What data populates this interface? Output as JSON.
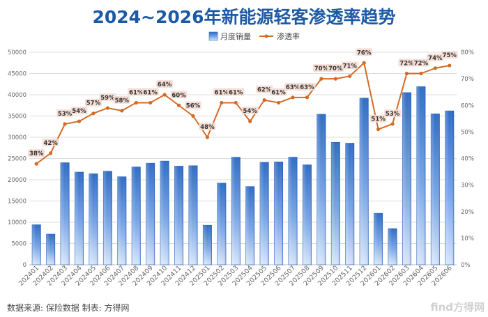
{
  "chart_data": {
    "type": "bar",
    "title": "2024~2026年新能源轻客渗透率趋势",
    "legend": {
      "position": "top",
      "bar_label": "月度销量",
      "line_label": "渗透率"
    },
    "categories": [
      "202401",
      "202402",
      "202403",
      "202404",
      "202405",
      "202406",
      "202407",
      "202408",
      "202409",
      "202410",
      "202411",
      "202412",
      "202501",
      "202502",
      "202503",
      "202504",
      "202505",
      "202506",
      "202507",
      "202508",
      "202509",
      "202510",
      "202511",
      "202512",
      "202601",
      "202602",
      "202603",
      "202604",
      "202605",
      "202606"
    ],
    "series": [
      {
        "name": "月度销量",
        "type": "bar",
        "axis": "left",
        "color": "#5b8fd6",
        "values": [
          9400,
          7200,
          24000,
          21800,
          21400,
          22000,
          20700,
          23000,
          23900,
          24400,
          23200,
          23300,
          9300,
          19200,
          25300,
          18400,
          24100,
          24200,
          25300,
          23500,
          35400,
          28800,
          28600,
          39200,
          12100,
          8500,
          40500,
          41900,
          35500,
          36200
        ]
      },
      {
        "name": "渗透率",
        "type": "line",
        "axis": "right",
        "color": "#d46a26",
        "values": [
          38,
          42,
          53,
          54,
          57,
          59,
          58,
          61,
          61,
          64,
          60,
          56,
          48,
          61,
          61,
          54,
          62,
          61,
          63,
          63,
          70,
          70,
          71,
          76,
          51,
          53,
          72,
          72,
          74,
          75
        ],
        "labels": [
          "38%",
          "42%",
          "53%",
          "54%",
          "57%",
          "59%",
          "58%",
          "61%",
          "61%",
          "64%",
          "60%",
          "56%",
          "48%",
          "61%",
          "61%",
          "54%",
          "62%",
          "61%",
          "63%",
          "63%",
          "70%",
          "70%",
          "71%",
          "76%",
          "51%",
          "53%",
          "72%",
          "72%",
          "74%",
          "75%"
        ]
      }
    ],
    "y_left": {
      "min": 0,
      "max": 50000,
      "step": 5000,
      "ticks": [
        "0",
        "5000",
        "10000",
        "15000",
        "20000",
        "25000",
        "30000",
        "35000",
        "40000",
        "45000",
        "50000"
      ]
    },
    "y_right": {
      "min": 0,
      "max": 80,
      "step": 10,
      "ticks": [
        "0%",
        "10%",
        "20%",
        "30%",
        "40%",
        "50%",
        "60%",
        "70%",
        "80%"
      ]
    },
    "grid": true
  },
  "footer": {
    "source": "数据来源: 保险数据 制表: 方得网",
    "watermark": "find方得网"
  }
}
